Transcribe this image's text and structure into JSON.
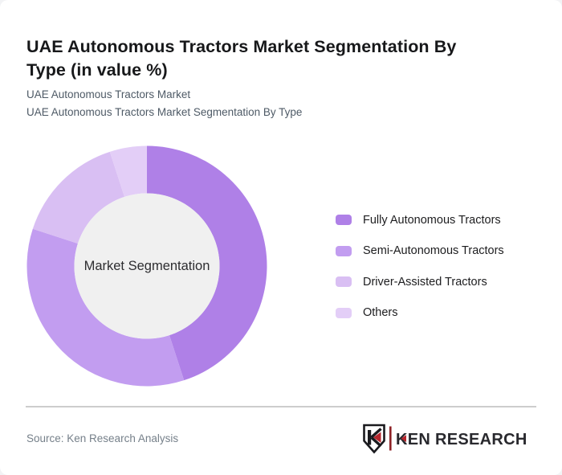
{
  "header": {
    "title": "UAE Autonomous Tractors Market Segmentation By Type (in value %)",
    "title_lines": [
      "UAE Autonomous Tractors Market Segmentation By",
      "Type (in value %)"
    ],
    "subtitle_line1": "UAE Autonomous Tractors Market",
    "subtitle_line2": "UAE Autonomous Tractors Market Segmentation By Type"
  },
  "chart_data": {
    "type": "pie",
    "variant": "donut",
    "title": "UAE Autonomous Tractors Market Segmentation By Type (in value %)",
    "center_label": "Market Segmentation",
    "categories": [
      "Fully Autonomous Tractors",
      "Semi-Autonomous Tractors",
      "Driver-Assisted Tractors",
      "Others"
    ],
    "values": [
      45,
      35,
      15,
      5
    ],
    "unit": "%",
    "colors": [
      "#af80e7",
      "#c29df0",
      "#d9bff3",
      "#e3cef7"
    ],
    "start_angle_deg": 0,
    "direction": "clockwise",
    "legend_position": "right",
    "hole_color": "#f0f0f0"
  },
  "legend": {
    "items": [
      {
        "label": "Fully Autonomous Tractors",
        "color": "#af80e7"
      },
      {
        "label": "Semi-Autonomous Tractors",
        "color": "#c29df0"
      },
      {
        "label": "Driver-Assisted Tractors",
        "color": "#d9bff3"
      },
      {
        "label": "Others",
        "color": "#e3cef7"
      }
    ]
  },
  "footer": {
    "source": "Source: Ken Research Analysis",
    "logo_text": "KEN RESEARCH",
    "logo_badge_letter": "K",
    "logo_red": "#b6252c",
    "logo_separator_color": "#8e2126",
    "logo_dark": "#1a1a1e"
  },
  "colors": {
    "page_background": "#f2f3f5",
    "card_background": "#ffffff",
    "title_text": "#17181a",
    "subtitle_text": "#4e5a66",
    "divider": "#cdcdcd",
    "source_text": "#76808a"
  }
}
